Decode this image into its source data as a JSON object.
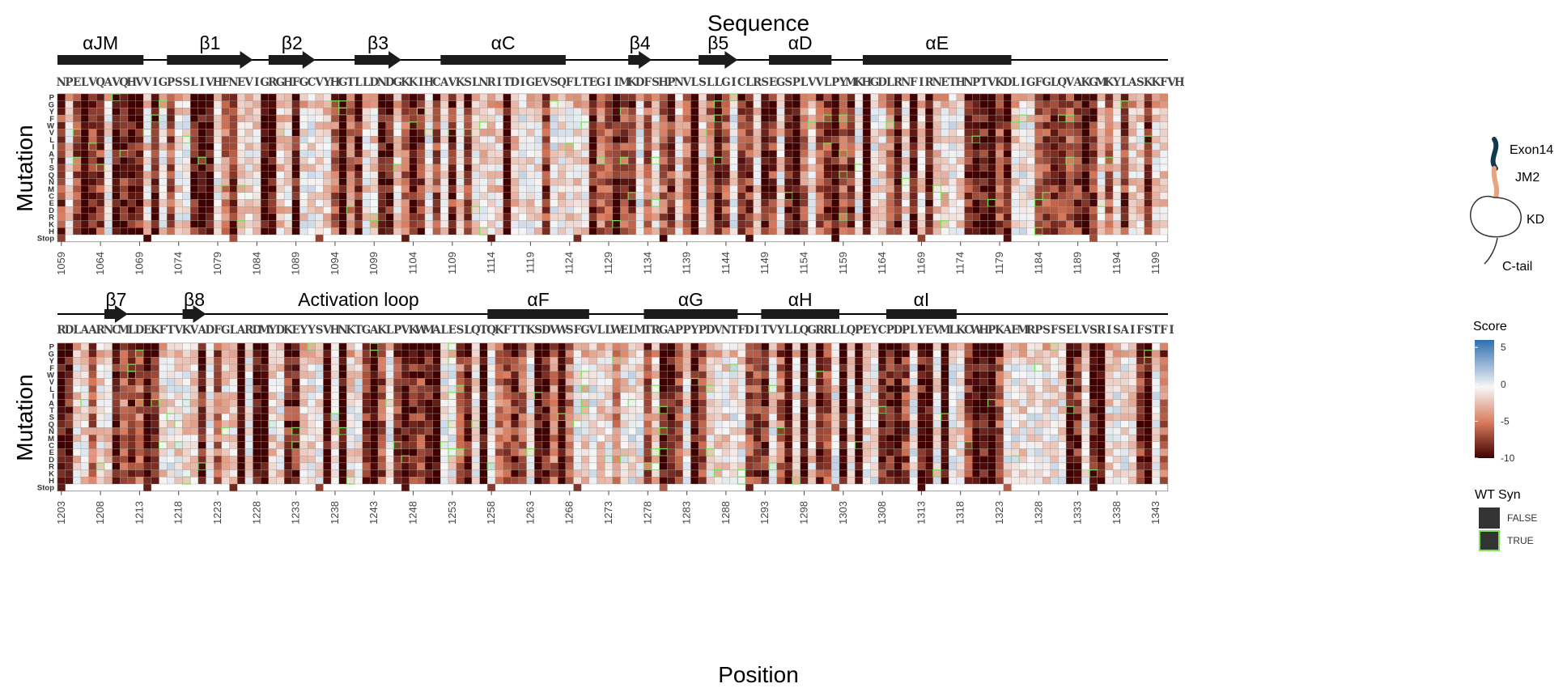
{
  "chart_data": {
    "type": "heatmap",
    "title": "Sequence",
    "xlabel": "Position",
    "ylabel": "Mutation",
    "mutations": [
      "P",
      "G",
      "Y",
      "F",
      "W",
      "V",
      "L",
      "I",
      "A",
      "T",
      "S",
      "Q",
      "N",
      "M",
      "C",
      "E",
      "D",
      "R",
      "K",
      "H",
      "Stop"
    ],
    "panels": [
      {
        "start": 1059,
        "sequence": "NPELVQAVQHVVIGPSSLIVHFNEVIGRGHFGCVYHGTLLDNDGKKIHCAVKSLNRITDIGEVSQFLTEGIIMKDFSHPNVLSLLGICLRSEGSPLVVLPYMKHGDLRNFIRNETHNPTVKDLIGFGLQVAKGMKYLASKKFVH",
        "ticks": [
          1059,
          1064,
          1069,
          1074,
          1079,
          1084,
          1089,
          1094,
          1099,
          1104,
          1109,
          1114,
          1119,
          1124,
          1129,
          1134,
          1139,
          1144,
          1149,
          1154,
          1159,
          1164,
          1169,
          1174,
          1179,
          1184,
          1189,
          1194,
          1199
        ],
        "elements": [
          {
            "label": "αJM",
            "type": "helix",
            "start": 1059,
            "end": 1069
          },
          {
            "label": "β1",
            "type": "strand",
            "start": 1073,
            "end": 1083
          },
          {
            "label": "β2",
            "type": "strand",
            "start": 1086,
            "end": 1091
          },
          {
            "label": "β3",
            "type": "strand",
            "start": 1097,
            "end": 1102
          },
          {
            "label": "αC",
            "type": "helix",
            "start": 1108,
            "end": 1123
          },
          {
            "label": "β4",
            "type": "strand",
            "start": 1132,
            "end": 1134
          },
          {
            "label": "β5",
            "type": "strand",
            "start": 1141,
            "end": 1145
          },
          {
            "label": "αD",
            "type": "helix",
            "start": 1150,
            "end": 1157
          },
          {
            "label": "αE",
            "type": "helix",
            "start": 1162,
            "end": 1180
          }
        ]
      },
      {
        "start": 1203,
        "sequence": "RDLAARNCMLDEKFTVKVADFGLARDMYDKEYYSVHNKTGAKLPVKWMALESLQTQKFTTKSDVWSFGVLLWELMTRGAPPYPDVNTFDITVYLLQGRRLLQPEYCPDPLYEVMLKCWHPKAEMRPSFSELVSRISAIFSTFI",
        "ticks": [
          1203,
          1208,
          1213,
          1218,
          1223,
          1228,
          1233,
          1238,
          1243,
          1248,
          1253,
          1258,
          1263,
          1268,
          1273,
          1278,
          1283,
          1288,
          1293,
          1298,
          1303,
          1308,
          1313,
          1318,
          1323,
          1328,
          1333,
          1338,
          1343
        ],
        "elements": [
          {
            "label": "β7",
            "type": "strand",
            "start": 1209,
            "end": 1211
          },
          {
            "label": "β8",
            "type": "strand",
            "start": 1219,
            "end": 1221
          },
          {
            "label": "Activation loop",
            "type": "loop",
            "start": 1231,
            "end": 1251
          },
          {
            "label": "αF",
            "type": "helix",
            "start": 1258,
            "end": 1270
          },
          {
            "label": "αG",
            "type": "helix",
            "start": 1278,
            "end": 1289
          },
          {
            "label": "αH",
            "type": "helix",
            "start": 1293,
            "end": 1302
          },
          {
            "label": "αI",
            "type": "helix",
            "start": 1309,
            "end": 1317
          }
        ]
      }
    ],
    "colorbar": {
      "title": "Score",
      "ticks": [
        5,
        0,
        -5,
        -10
      ],
      "range": [
        -10,
        6
      ],
      "colors": {
        "high": "#2f6fb0",
        "mid": "#f7f7f7",
        "low_mid": "#d97a5c",
        "low": "#400000"
      }
    },
    "wt_syn_legend": {
      "title": "WT Syn",
      "items": [
        "FALSE",
        "TRUE"
      ],
      "outline_true": "#7be05a"
    }
  },
  "domain_cartoon": {
    "labels": [
      "Exon14",
      "JM2",
      "KD",
      "C-tail"
    ],
    "colors": {
      "exon14": "#123a4e",
      "jm2": "#e8a47e"
    }
  },
  "footer_text": "Position"
}
